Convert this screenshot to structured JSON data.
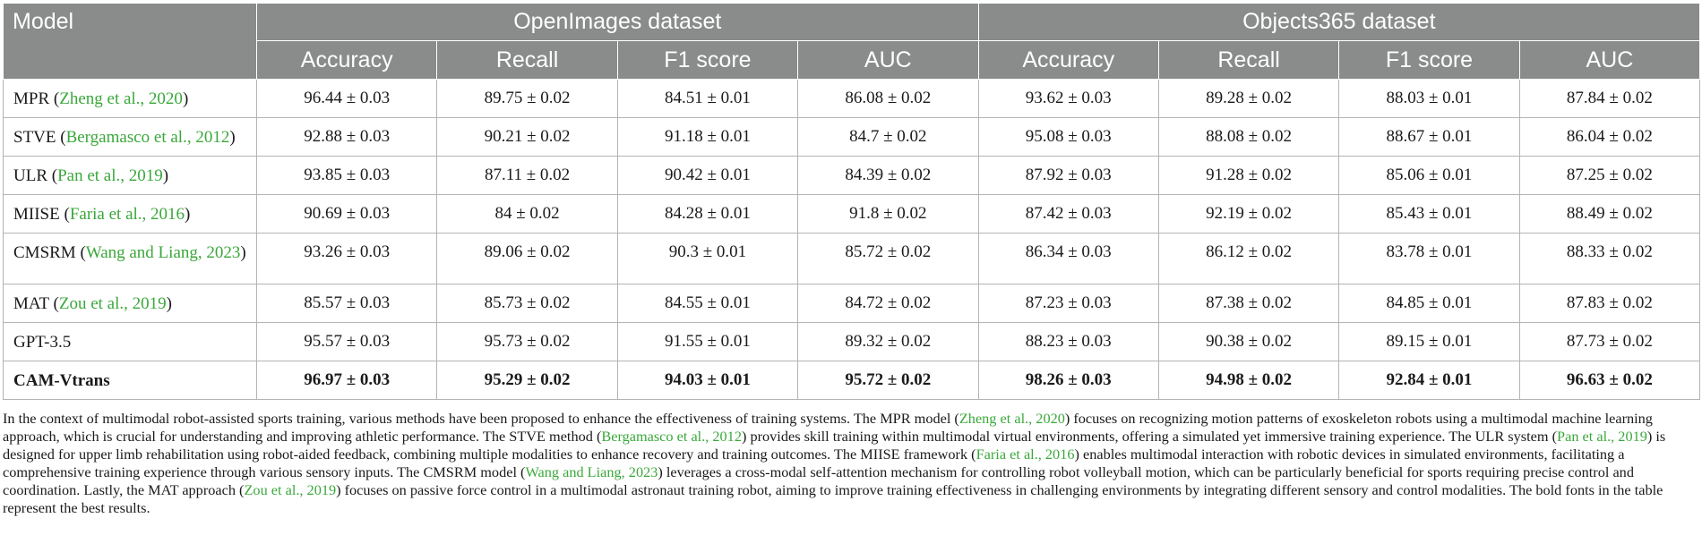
{
  "header": {
    "model_label": "Model",
    "groups": [
      "OpenImages dataset",
      "Objects365 dataset"
    ],
    "metrics": [
      "Accuracy",
      "Recall",
      "F1 score",
      "AUC",
      "Accuracy",
      "Recall",
      "F1 score",
      "AUC"
    ]
  },
  "rows": [
    {
      "name": "MPR (",
      "cite": "Zheng et al., 2020",
      "close": ")",
      "values": [
        "96.44 ± 0.03",
        "89.75 ± 0.02",
        "84.51 ± 0.01",
        "86.08 ± 0.02",
        "93.62 ± 0.03",
        "89.28 ± 0.02",
        "88.03 ± 0.01",
        "87.84 ± 0.02"
      ]
    },
    {
      "name": "STVE (",
      "cite": "Bergamasco et al., 2012",
      "close": ")",
      "values": [
        "92.88 ± 0.03",
        "90.21 ± 0.02",
        "91.18 ± 0.01",
        "84.7 ± 0.02",
        "95.08 ± 0.03",
        "88.08 ± 0.02",
        "88.67 ± 0.01",
        "86.04 ± 0.02"
      ]
    },
    {
      "name": "ULR (",
      "cite": "Pan et al., 2019",
      "close": ")",
      "values": [
        "93.85 ± 0.03",
        "87.11 ± 0.02",
        "90.42 ± 0.01",
        "84.39 ± 0.02",
        "87.92 ± 0.03",
        "91.28 ± 0.02",
        "85.06 ± 0.01",
        "87.25 ± 0.02"
      ]
    },
    {
      "name": "MIISE (",
      "cite": "Faria et al., 2016",
      "close": ")",
      "values": [
        "90.69 ± 0.03",
        "84 ± 0.02",
        "84.28 ± 0.01",
        "91.8 ± 0.02",
        "87.42 ± 0.03",
        "92.19 ± 0.02",
        "85.43 ± 0.01",
        "88.49 ± 0.02"
      ]
    },
    {
      "name": "CMSRM (",
      "cite": "Wang and Liang, 2023",
      "close": ")",
      "values": [
        "93.26 ± 0.03",
        "89.06 ± 0.02",
        "90.3 ± 0.01",
        "85.72 ± 0.02",
        "86.34 ± 0.03",
        "86.12 ± 0.02",
        "83.78 ± 0.01",
        "88.33 ± 0.02"
      ]
    },
    {
      "name": "MAT (",
      "cite": "Zou et al., 2019",
      "close": ")",
      "values": [
        "85.57 ± 0.03",
        "85.73 ± 0.02",
        "84.55 ± 0.01",
        "84.72 ± 0.02",
        "87.23 ± 0.03",
        "87.38 ± 0.02",
        "84.85 ± 0.01",
        "87.83 ± 0.02"
      ]
    },
    {
      "name": "GPT-3.5",
      "cite": "",
      "close": "",
      "values": [
        "95.57 ± 0.03",
        "95.73 ± 0.02",
        "91.55 ± 0.01",
        "89.32 ± 0.02",
        "88.23 ± 0.03",
        "90.38 ± 0.02",
        "89.15 ± 0.01",
        "87.73 ± 0.02"
      ]
    },
    {
      "name": "CAM-Vtrans",
      "cite": "",
      "close": "",
      "values": [
        "96.97 ± 0.03",
        "95.29 ± 0.02",
        "94.03 ± 0.01",
        "95.72 ± 0.02",
        "98.26 ± 0.03",
        "94.98 ± 0.02",
        "92.84 ± 0.01",
        "96.63 ± 0.02"
      ]
    }
  ],
  "caption": {
    "s1": "In the context of multimodal robot-assisted sports training, various methods have been proposed to enhance the effectiveness of training systems. The MPR model (",
    "c1": "Zheng et al., 2020",
    "s2": ") focuses on recognizing motion patterns of exoskeleton robots using a multimodal machine learning approach, which is crucial for understanding and improving athletic performance. The STVE method (",
    "c2": "Bergamasco et al., 2012",
    "s3": ") provides skill training within multimodal virtual environments, offering a simulated yet immersive training experience. The ULR system (",
    "c3": "Pan et al., 2019",
    "s4": ") is designed for upper limb rehabilitation using robot-aided feedback, combining multiple modalities to enhance recovery and training outcomes. The MIISE framework (",
    "c4": "Faria et al., 2016",
    "s5": ") enables multimodal interaction with robotic devices in simulated environments, facilitating a comprehensive training experience through various sensory inputs. The CMSRM model (",
    "c5": "Wang and Liang, 2023",
    "s6": ") leverages a cross-modal self-attention mechanism for controlling robot volleyball motion, which can be particularly beneficial for sports requiring precise control and coordination. Lastly, the MAT approach (",
    "c6": "Zou et al., 2019",
    "s7": ") focuses on passive force control in a multimodal astronaut training robot, aiming to improve training effectiveness in challenging environments by integrating different sensory and control modalities. The bold fonts in the table represent the best results."
  },
  "colors": {
    "header_bg": "#8a8c8c",
    "citation": "#3aa83a",
    "border": "#b4b4b4"
  }
}
